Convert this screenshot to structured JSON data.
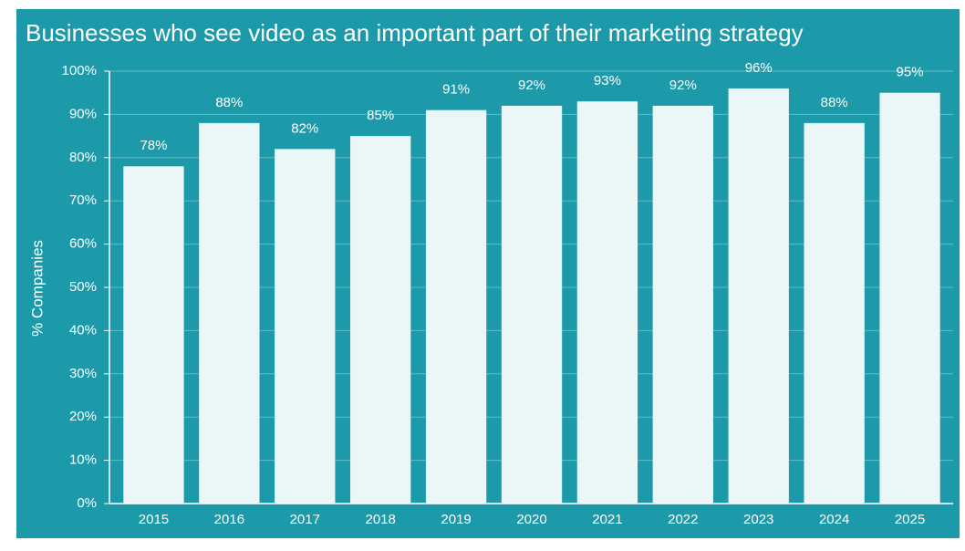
{
  "chart_data": {
    "type": "bar",
    "title": "Businesses who see video as an important part of their marketing strategy",
    "y_label": "% Companies",
    "categories": [
      "2015",
      "2016",
      "2017",
      "2018",
      "2019",
      "2020",
      "2021",
      "2022",
      "2023",
      "2024",
      "2025"
    ],
    "values": [
      78,
      88,
      82,
      85,
      91,
      92,
      93,
      92,
      96,
      88,
      95
    ],
    "value_labels": [
      "78%",
      "88%",
      "82%",
      "85%",
      "91%",
      "92%",
      "93%",
      "92%",
      "96%",
      "88%",
      "95%"
    ],
    "color": "#eaf6f8",
    "ylim": [
      0,
      100
    ],
    "yticks": [
      {
        "value": 0,
        "label": "0%"
      },
      {
        "value": 10,
        "label": "10%"
      },
      {
        "value": 20,
        "label": "20%"
      },
      {
        "value": 30,
        "label": "30%"
      },
      {
        "value": 40,
        "label": "40%"
      },
      {
        "value": 50,
        "label": "50%"
      },
      {
        "value": 60,
        "label": "60%"
      },
      {
        "value": 70,
        "label": "70%"
      },
      {
        "value": 80,
        "label": "80%"
      },
      {
        "value": 90,
        "label": "90%"
      },
      {
        "value": 100,
        "label": "100%"
      }
    ],
    "grid": true
  }
}
